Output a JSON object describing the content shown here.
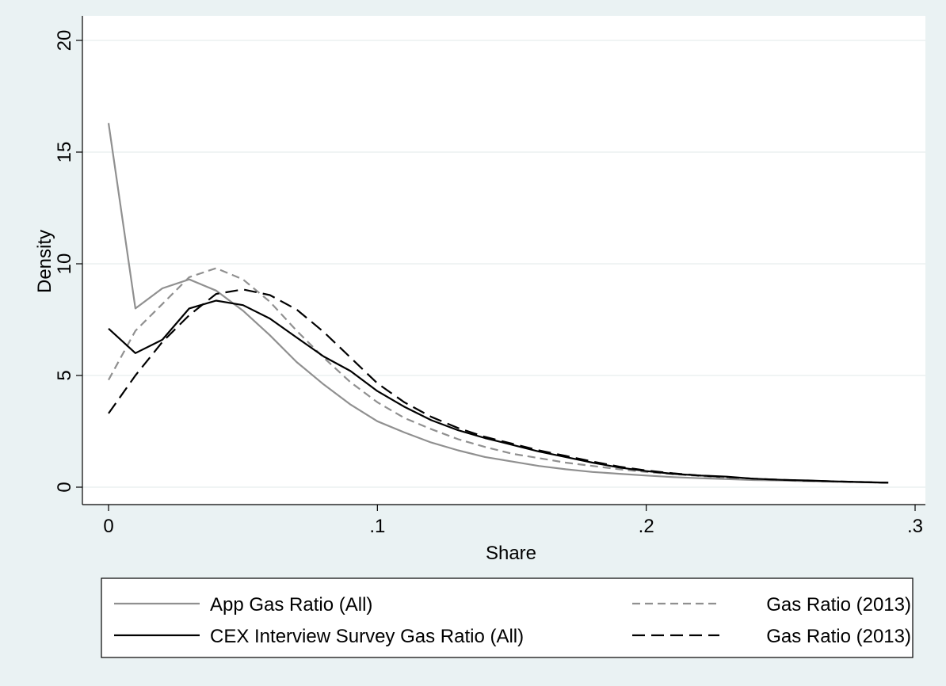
{
  "chart_data": {
    "type": "line",
    "xlabel": "Share",
    "ylabel": "Density",
    "xlim": [
      0,
      0.3
    ],
    "ylim": [
      0,
      20
    ],
    "xticks": [
      {
        "value": 0,
        "label": "0"
      },
      {
        "value": 0.1,
        "label": ".1"
      },
      {
        "value": 0.2,
        "label": ".2"
      },
      {
        "value": 0.3,
        "label": ".3"
      }
    ],
    "yticks": [
      {
        "value": 0,
        "label": "0"
      },
      {
        "value": 5,
        "label": "5"
      },
      {
        "value": 10,
        "label": "10"
      },
      {
        "value": 15,
        "label": "15"
      },
      {
        "value": 20,
        "label": "20"
      }
    ],
    "grid": "horizontal",
    "legend_position": "bottom",
    "x": [
      0,
      0.01,
      0.02,
      0.03,
      0.04,
      0.05,
      0.06,
      0.07,
      0.08,
      0.09,
      0.1,
      0.11,
      0.12,
      0.13,
      0.14,
      0.15,
      0.16,
      0.17,
      0.18,
      0.19,
      0.2,
      0.21,
      0.22,
      0.23,
      0.24,
      0.25,
      0.26,
      0.27,
      0.28,
      0.29
    ],
    "series": [
      {
        "name": "App Gas Ratio (All)",
        "color": "#909090",
        "dash": "solid",
        "values": [
          16.3,
          8.0,
          8.9,
          9.3,
          8.8,
          7.9,
          6.8,
          5.6,
          4.6,
          3.7,
          2.95,
          2.45,
          2.0,
          1.65,
          1.35,
          1.15,
          0.95,
          0.8,
          0.68,
          0.6,
          0.52,
          0.45,
          0.4,
          0.36,
          0.32,
          0.3,
          0.27,
          0.25,
          0.22,
          0.2
        ]
      },
      {
        "name": "Gas Ratio (2013)",
        "color": "#909090",
        "dash": "dash",
        "values": [
          4.8,
          7.0,
          8.2,
          9.4,
          9.8,
          9.3,
          8.3,
          7.0,
          5.8,
          4.7,
          3.8,
          3.1,
          2.6,
          2.15,
          1.8,
          1.5,
          1.3,
          1.1,
          0.95,
          0.8,
          0.68,
          0.58,
          0.5,
          0.43,
          0.37,
          0.32,
          0.28,
          0.25,
          0.22,
          0.2
        ]
      },
      {
        "name": "CEX Interview Survey Gas Ratio (All)",
        "color": "#000000",
        "dash": "solid",
        "values": [
          7.1,
          6.0,
          6.6,
          8.0,
          8.35,
          8.15,
          7.55,
          6.7,
          5.85,
          5.2,
          4.3,
          3.6,
          3.0,
          2.55,
          2.2,
          1.9,
          1.6,
          1.35,
          1.1,
          0.88,
          0.72,
          0.6,
          0.52,
          0.47,
          0.38,
          0.33,
          0.3,
          0.26,
          0.23,
          0.2
        ]
      },
      {
        "name": "Gas Ratio (2013)",
        "color": "#000000",
        "dash": "longdash",
        "values": [
          3.3,
          5.0,
          6.5,
          7.7,
          8.65,
          8.85,
          8.6,
          7.95,
          6.95,
          5.8,
          4.65,
          3.8,
          3.15,
          2.65,
          2.25,
          1.95,
          1.65,
          1.4,
          1.15,
          0.92,
          0.75,
          0.62,
          0.52,
          0.45,
          0.38,
          0.33,
          0.29,
          0.26,
          0.23,
          0.2
        ]
      }
    ]
  }
}
